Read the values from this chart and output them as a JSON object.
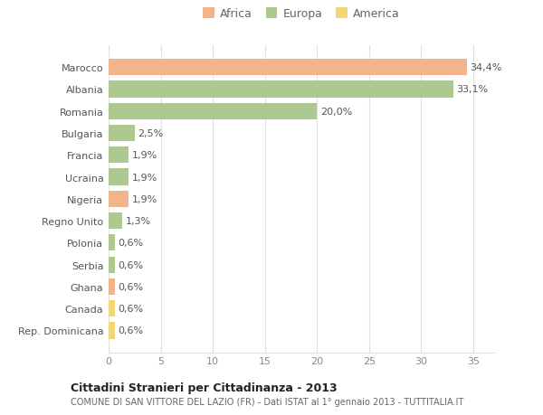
{
  "categories": [
    "Marocco",
    "Albania",
    "Romania",
    "Bulgaria",
    "Francia",
    "Ucraina",
    "Nigeria",
    "Regno Unito",
    "Polonia",
    "Serbia",
    "Ghana",
    "Canada",
    "Rep. Dominicana"
  ],
  "values": [
    34.4,
    33.1,
    20.0,
    2.5,
    1.9,
    1.9,
    1.9,
    1.3,
    0.6,
    0.6,
    0.6,
    0.6,
    0.6
  ],
  "labels": [
    "34,4%",
    "33,1%",
    "20,0%",
    "2,5%",
    "1,9%",
    "1,9%",
    "1,9%",
    "1,3%",
    "0,6%",
    "0,6%",
    "0,6%",
    "0,6%",
    "0,6%"
  ],
  "colors": [
    "#f2b48a",
    "#adc990",
    "#adc990",
    "#adc990",
    "#adc990",
    "#adc990",
    "#f2b48a",
    "#adc990",
    "#adc990",
    "#adc990",
    "#f2b48a",
    "#f0d878",
    "#f0d878"
  ],
  "legend_labels": [
    "Africa",
    "Europa",
    "America"
  ],
  "legend_colors": [
    "#f2b48a",
    "#adc990",
    "#f0d878"
  ],
  "title": "Cittadini Stranieri per Cittadinanza - 2013",
  "subtitle": "COMUNE DI SAN VITTORE DEL LAZIO (FR) - Dati ISTAT al 1° gennaio 2013 - TUTTITALIA.IT",
  "xlim": [
    0,
    37
  ],
  "xticks": [
    0,
    5,
    10,
    15,
    20,
    25,
    30,
    35
  ],
  "background_color": "#ffffff",
  "grid_color": "#e0e0e0",
  "bar_height": 0.75
}
